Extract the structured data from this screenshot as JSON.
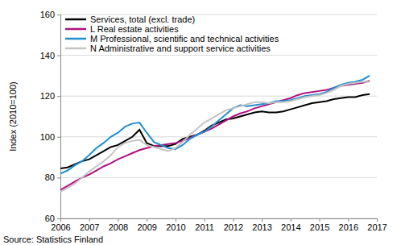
{
  "chart_data": {
    "type": "line",
    "y_label": "Index (2010=100)",
    "source": "Source: Statistics Finland",
    "x": [
      2006,
      2006.25,
      2006.5,
      2006.75,
      2007,
      2007.25,
      2007.5,
      2007.75,
      2008,
      2008.25,
      2008.5,
      2008.75,
      2009,
      2009.25,
      2009.5,
      2009.75,
      2010,
      2010.25,
      2010.5,
      2010.75,
      2011,
      2011.25,
      2011.5,
      2011.75,
      2012,
      2012.25,
      2012.5,
      2012.75,
      2013,
      2013.25,
      2013.5,
      2013.75,
      2014,
      2014.25,
      2014.5,
      2014.75,
      2015,
      2015.25,
      2015.5,
      2015.75,
      2016,
      2016.25,
      2016.5,
      2016.75
    ],
    "series": [
      {
        "name": "Services, total (excl. trade)",
        "color": "#000000",
        "values": [
          84.5,
          85,
          86.5,
          88,
          89,
          91,
          93,
          95,
          96,
          98,
          100,
          103.5,
          97,
          95.5,
          95.5,
          95.5,
          96.5,
          99,
          100,
          101,
          103,
          105.5,
          107,
          108.5,
          109,
          110,
          111,
          112,
          112.5,
          112,
          112,
          112.5,
          113.5,
          114.5,
          115.5,
          116.5,
          117,
          117.5,
          118.5,
          119,
          119.5,
          119.5,
          120.5,
          121
        ]
      },
      {
        "name": "L Real estate activities",
        "color": "#b0127f",
        "values": [
          74,
          76,
          78,
          80,
          81.5,
          83.5,
          85.5,
          87,
          89,
          90.5,
          92,
          93.5,
          94.5,
          95.5,
          96,
          96.5,
          97,
          98,
          99.5,
          101,
          102.5,
          104,
          106,
          108,
          110,
          111.5,
          112.5,
          114,
          115,
          116,
          117,
          118,
          119,
          120.5,
          121.5,
          122,
          122.5,
          123,
          124,
          125,
          125.5,
          126,
          126.5,
          127.5
        ]
      },
      {
        "name": "M Professional, scientific and technical activities",
        "color": "#1f8fd0",
        "values": [
          82,
          83.5,
          86,
          88,
          91,
          94.5,
          97,
          100,
          102,
          105,
          106.5,
          107,
          102,
          97.5,
          96,
          94.5,
          94,
          96,
          99,
          101,
          102.5,
          105,
          108,
          111,
          114,
          115.5,
          115,
          115.5,
          116,
          116.5,
          117.5,
          117.5,
          118,
          119,
          120,
          120.5,
          121,
          122,
          124,
          125.5,
          126.5,
          127,
          128,
          130
        ]
      },
      {
        "name": "N Administrative and support service activities",
        "color": "#c4c4c4",
        "values": [
          73,
          75,
          77,
          80,
          83,
          85.5,
          88,
          91,
          95,
          97,
          98,
          98.5,
          96,
          95,
          94,
          93,
          94.5,
          97.5,
          101,
          104,
          107,
          109,
          111,
          113,
          114,
          115,
          116,
          117,
          117,
          116.5,
          117,
          117,
          117.5,
          118.5,
          119.5,
          120,
          120.5,
          121.5,
          123,
          125,
          126,
          126.5,
          127,
          127
        ]
      }
    ],
    "xlim": [
      2006,
      2017
    ],
    "xticks": [
      2006,
      2007,
      2008,
      2009,
      2010,
      2011,
      2012,
      2013,
      2014,
      2015,
      2016,
      2017
    ],
    "ylim": [
      60,
      160
    ],
    "yticks": [
      60,
      80,
      100,
      120,
      140,
      160
    ],
    "grid": true,
    "legend": "top-left"
  }
}
